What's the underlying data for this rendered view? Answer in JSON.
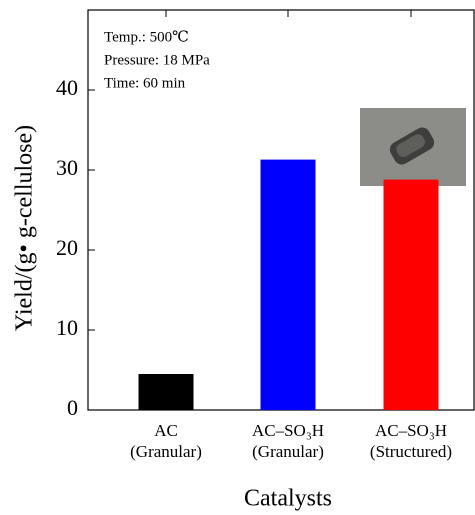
{
  "chart_data": {
    "type": "bar",
    "categories": [
      [
        "AC",
        "(Granular)"
      ],
      [
        "AC–SO₃H",
        "(Granular)"
      ],
      [
        "AC–SO₃H",
        "(Structured)"
      ]
    ],
    "values": [
      4.5,
      31.3,
      28.8
    ],
    "colors": [
      "#000000",
      "#0000ff",
      "#ff0000"
    ],
    "ylim": [
      0,
      50
    ],
    "yticks": [
      0,
      10,
      20,
      30,
      40
    ],
    "y_label": "Yield/(g• g-cellulose)",
    "x_label": "Catalysts",
    "annotations": [
      "Temp.: 500℃",
      "Pressure: 18 MPa",
      "Time: 60 min"
    ]
  }
}
